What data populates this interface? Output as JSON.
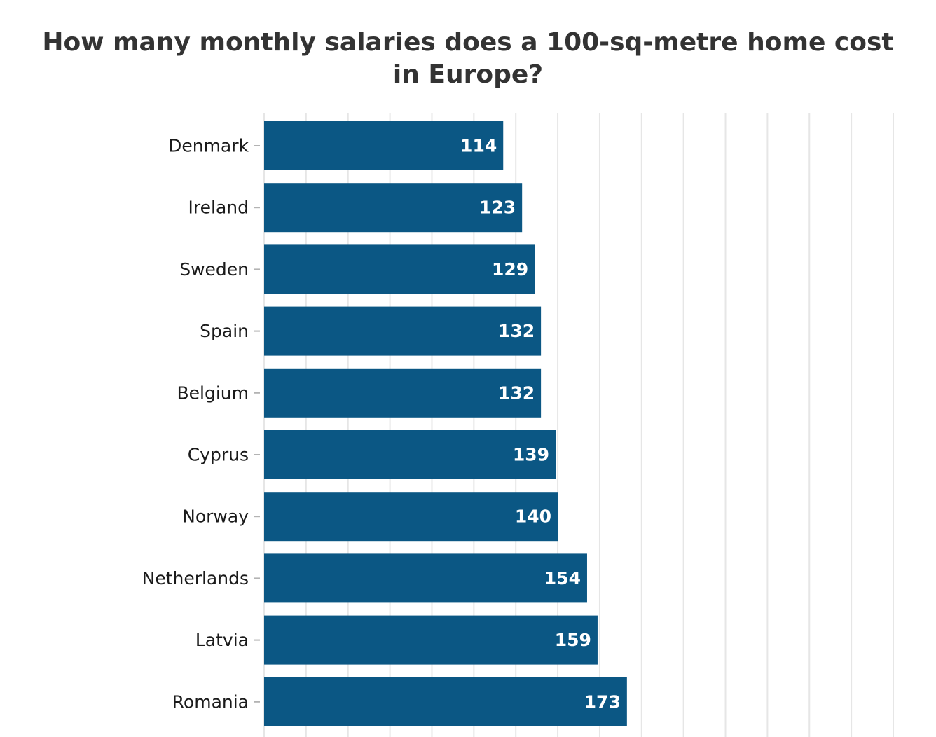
{
  "chart_data": {
    "type": "bar",
    "orientation": "horizontal",
    "title": "How many monthly salaries does a 100-sq-metre home cost in Europe?",
    "categories": [
      "Denmark",
      "Ireland",
      "Sweden",
      "Spain",
      "Belgium",
      "Cyprus",
      "Norway",
      "Netherlands",
      "Latvia",
      "Romania"
    ],
    "values": [
      114,
      123,
      129,
      132,
      132,
      139,
      140,
      154,
      159,
      173
    ],
    "data_labels": [
      "114",
      "123",
      "129",
      "132",
      "132",
      "139",
      "140",
      "154",
      "159",
      "173"
    ],
    "xlim": [
      0,
      300
    ],
    "grid_step": 20,
    "grid": true,
    "legend": "none",
    "bar_color": "#0b5784",
    "label_color": "#ffffff",
    "grid_color": "#e6e6e6"
  }
}
